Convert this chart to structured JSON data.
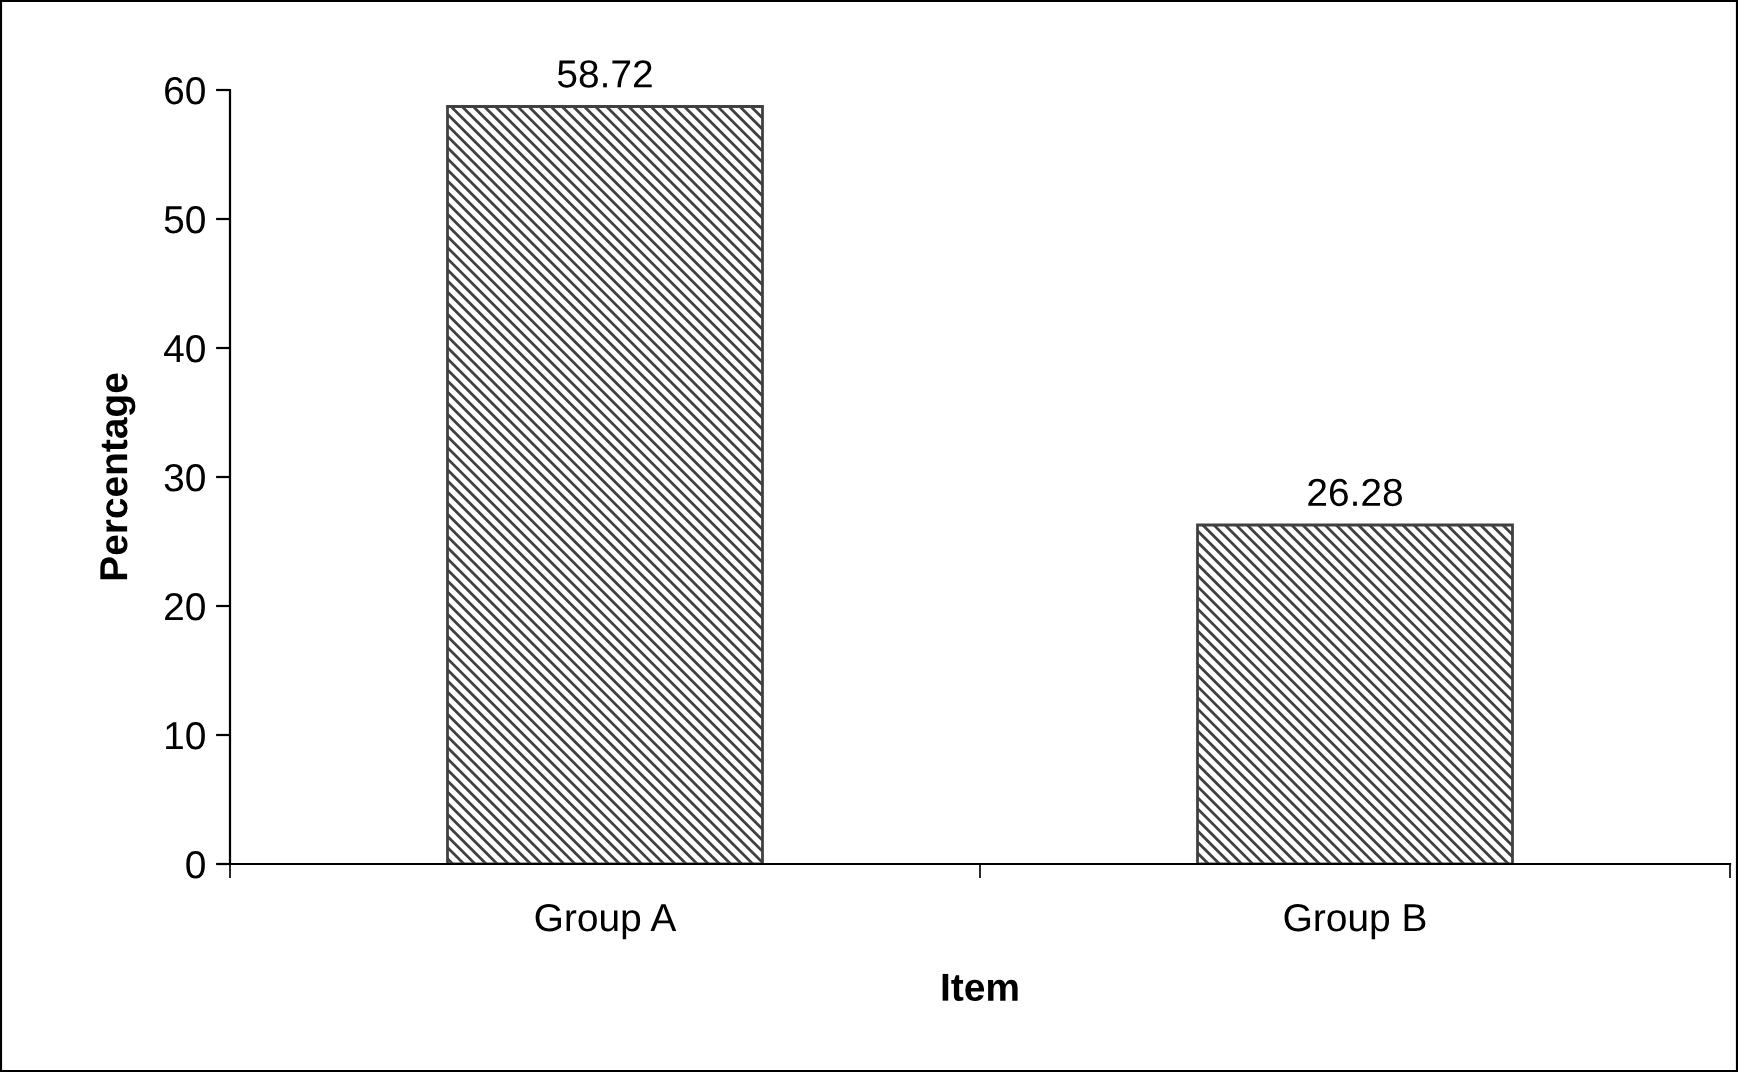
{
  "chart_data": {
    "type": "bar",
    "xlabel": "Item",
    "ylabel": "Percentage",
    "categories": [
      "Group A",
      "Group B"
    ],
    "values": [
      58.72,
      26.28
    ],
    "color": "#404040",
    "ylim": [
      0,
      60
    ],
    "yticks": [
      0,
      10,
      20,
      30,
      40,
      50,
      60
    ],
    "grid": false,
    "legend": false,
    "data_labels": true
  }
}
